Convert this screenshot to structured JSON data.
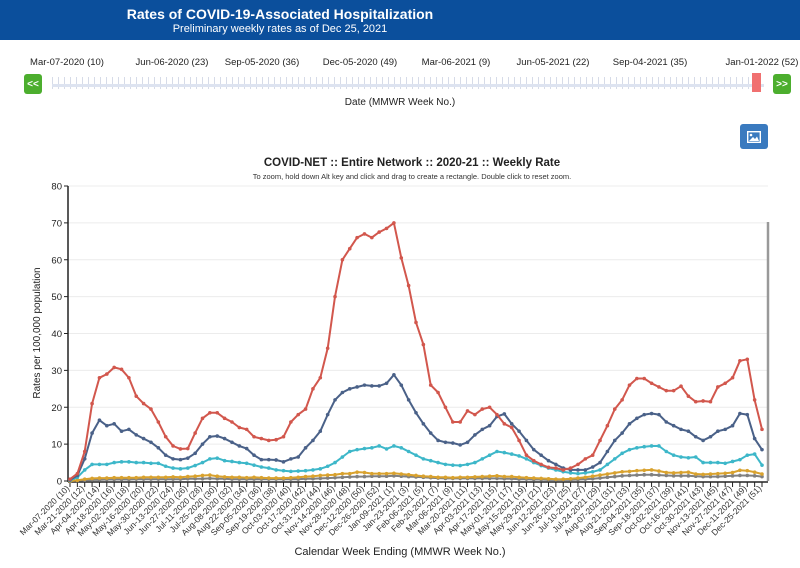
{
  "header": {
    "title": "Rates of COVID-19-Associated Hospitalization",
    "subtitle": "Preliminary weekly rates as of Dec 25, 2021"
  },
  "slider": {
    "labels": [
      "Mar-07-2020 (10)",
      "Jun-06-2020 (23)",
      "Sep-05-2020 (36)",
      "Dec-05-2020 (49)",
      "Mar-06-2021 (9)",
      "Jun-05-2021 (22)",
      "Sep-04-2021 (35)",
      "Jan-01-2022 (52)"
    ],
    "prev_label": "<<",
    "next_label": ">>",
    "axis_label": "Date (MMWR Week No.)"
  },
  "toolbar": {
    "image_icon": "image-icon"
  },
  "chart_data": {
    "type": "line",
    "title": "COVID-NET :: Entire Network :: 2020-21 :: Weekly Rate",
    "subtitle": "To zoom, hold down Alt key and click and drag to create a rectangle. Double click to reset zoom.",
    "xlabel": "Calendar Week Ending (MMWR Week No.)",
    "ylabel": "Rates per 100,000 population",
    "ylim": [
      0,
      80
    ],
    "yticks": [
      0,
      10,
      20,
      30,
      40,
      50,
      60,
      70,
      80
    ],
    "x_start": "Mar-07-2020",
    "x_interval": "weekly",
    "x_tick_labels": [
      "Mar-07-2020 (10)",
      "Mar-21-2020 (12)",
      "Apr-04-2020 (14)",
      "Apr-18-2020 (16)",
      "May-02-2020 (18)",
      "May-16-2020 (20)",
      "May-30-2020 (22)",
      "Jun-13-2020 (24)",
      "Jun-27-2020 (26)",
      "Jul-11-2020 (28)",
      "Jul-25-2020 (30)",
      "Aug-08-2020 (32)",
      "Aug-22-2020 (34)",
      "Sep-05-2020 (36)",
      "Sep-19-2020 (38)",
      "Oct-03-2020 (40)",
      "Oct-17-2020 (42)",
      "Oct-31-2020 (44)",
      "Nov-14-2020 (46)",
      "Nov-28-2020 (48)",
      "Dec-12-2020 (50)",
      "Dec-26-2020 (52)",
      "Jan-09-2021 (1)",
      "Jan-23-2021 (3)",
      "Feb-06-2021 (5)",
      "Feb-20-2021 (7)",
      "Mar-06-2021 (9)",
      "Mar-20-2021 (11)",
      "Apr-03-2021 (13)",
      "Apr-17-2021 (15)",
      "May-01-2021 (17)",
      "May-15-2021 (19)",
      "May-29-2021 (21)",
      "Jun-12-2021 (23)",
      "Jun-26-2021 (25)",
      "Jul-10-2021 (27)",
      "Jul-24-2021 (29)",
      "Aug-07-2021 (31)",
      "Aug-21-2021 (33)",
      "Sep-04-2021 (35)",
      "Sep-18-2021 (37)",
      "Oct-02-2021 (39)",
      "Oct-16-2021 (41)",
      "Oct-30-2021 (43)",
      "Nov-13-2021 (45)",
      "Nov-27-2021 (47)",
      "Dec-11-2021 (49)",
      "Dec-25-2021 (51)"
    ],
    "grid": true,
    "series": [
      {
        "color": "#d2574d",
        "values": [
          0.5,
          2,
          8,
          21,
          28,
          29,
          30.8,
          30.3,
          28,
          23,
          21,
          19.5,
          16,
          12,
          9.5,
          8.7,
          8.8,
          13,
          17,
          18.5,
          18.5,
          17,
          16,
          14.5,
          14,
          12,
          11.5,
          11,
          11.2,
          12,
          16,
          18,
          19.5,
          25,
          28,
          36,
          50,
          60,
          63,
          66,
          67,
          66,
          67.5,
          68.5,
          70,
          60.5,
          53,
          43,
          37,
          26,
          24,
          20,
          16,
          16,
          19,
          18,
          19.5,
          20,
          18,
          15.5,
          14.5,
          11,
          7,
          5.5,
          4.5,
          3.7,
          3.5,
          3,
          3.5,
          4.5,
          6,
          7,
          11,
          15,
          19.5,
          22,
          26,
          27.8,
          27.8,
          26.5,
          25.5,
          24.5,
          24.5,
          25.7,
          23,
          21.5,
          21.7,
          21.5,
          25.5,
          26.5,
          28,
          32.6,
          33,
          22,
          14
        ]
      },
      {
        "color": "#4a6188",
        "values": [
          0.3,
          1.5,
          6,
          13,
          16.5,
          15,
          15.5,
          13.5,
          14,
          12.5,
          11.5,
          10.5,
          9,
          7,
          6,
          5.8,
          6.2,
          7.5,
          10,
          12,
          12.2,
          11.5,
          10.5,
          9.5,
          8.8,
          7,
          5.8,
          5.8,
          5.7,
          5.2,
          6,
          6.5,
          9,
          11,
          13.5,
          18,
          22,
          24,
          25,
          25.5,
          26,
          25.8,
          25.8,
          26.5,
          28.8,
          26,
          22,
          18.5,
          15.5,
          13,
          11,
          10.5,
          10.3,
          9.8,
          10.5,
          12.5,
          14,
          15,
          17.5,
          18.2,
          15.5,
          13.5,
          11,
          8.5,
          7,
          5.5,
          4.5,
          3.5,
          3,
          3,
          3,
          3.8,
          5,
          8,
          11,
          13,
          15.5,
          17,
          18,
          18.3,
          18,
          16,
          15,
          14,
          13.5,
          12,
          11,
          12,
          13.5,
          14,
          15,
          18.3,
          18,
          11.5,
          8.5
        ]
      },
      {
        "color": "#3db7c9",
        "values": [
          0.2,
          1,
          3,
          4.5,
          4.5,
          4.5,
          5,
          5.2,
          5.2,
          5,
          5,
          4.8,
          4.8,
          4,
          3.5,
          3.3,
          3.5,
          4.2,
          5,
          6,
          6.2,
          5.5,
          5.3,
          5,
          4.8,
          4.3,
          3.8,
          3.5,
          3,
          2.8,
          2.6,
          2.7,
          2.8,
          3,
          3.3,
          4,
          5,
          6.5,
          8,
          8.5,
          8.8,
          9,
          9.5,
          8.7,
          9.5,
          9,
          8,
          7,
          6,
          5.5,
          5,
          4.5,
          4.3,
          4.2,
          4.5,
          5,
          6,
          7,
          8,
          7.7,
          7.3,
          6.8,
          6,
          5,
          4.2,
          3.5,
          3,
          2.5,
          2.2,
          2,
          2.2,
          2.5,
          3,
          4.5,
          6,
          7.5,
          8.5,
          9,
          9.3,
          9.5,
          9.5,
          8,
          7,
          6.5,
          6.3,
          6.5,
          5,
          5,
          5,
          4.8,
          5.3,
          5.8,
          7,
          7.3,
          4.3
        ]
      },
      {
        "color": "#d9a22e",
        "values": [
          0,
          0.2,
          0.5,
          0.7,
          0.8,
          0.8,
          0.9,
          0.9,
          0.9,
          0.9,
          1,
          1,
          1,
          1,
          1.1,
          1,
          1.2,
          1.3,
          1.5,
          1.6,
          1.3,
          1.1,
          1,
          1,
          0.9,
          1,
          0.9,
          0.8,
          0.8,
          0.8,
          0.9,
          1,
          1.2,
          1.3,
          1.5,
          1.6,
          1.7,
          2,
          2,
          2.4,
          2.3,
          2,
          2,
          2,
          2.1,
          1.9,
          1.7,
          1.5,
          1.3,
          1.2,
          1,
          1,
          0.9,
          1,
          1,
          1.1,
          1.2,
          1.3,
          1.4,
          1.2,
          1.2,
          1,
          0.9,
          0.8,
          0.7,
          0.6,
          0.5,
          0.5,
          0.6,
          0.8,
          1,
          1.3,
          1.6,
          1.9,
          2.2,
          2.5,
          2.6,
          2.8,
          2.9,
          3,
          2.7,
          2.3,
          2.2,
          2.3,
          2.4,
          1.9,
          1.8,
          1.9,
          2,
          2.1,
          2.3,
          2.9,
          2.8,
          2.4,
          1.9
        ]
      },
      {
        "color": "#808080",
        "values": [
          0,
          0.1,
          0.2,
          0.3,
          0.3,
          0.4,
          0.4,
          0.4,
          0.4,
          0.5,
          0.5,
          0.5,
          0.5,
          0.5,
          0.5,
          0.5,
          0.6,
          0.6,
          0.6,
          0.7,
          0.6,
          0.6,
          0.5,
          0.5,
          0.5,
          0.5,
          0.5,
          0.5,
          0.5,
          0.5,
          0.5,
          0.5,
          0.6,
          0.6,
          0.7,
          0.8,
          0.9,
          1,
          1.1,
          1.2,
          1.2,
          1.3,
          1.3,
          1.3,
          1.4,
          1.3,
          1.2,
          1.1,
          1,
          0.9,
          0.8,
          0.7,
          0.7,
          0.7,
          0.7,
          0.7,
          0.7,
          0.7,
          0.7,
          0.6,
          0.6,
          0.5,
          0.5,
          0.4,
          0.4,
          0.3,
          0.3,
          0.3,
          0.3,
          0.4,
          0.5,
          0.6,
          0.8,
          1,
          1.2,
          1.4,
          1.5,
          1.6,
          1.7,
          1.7,
          1.6,
          1.5,
          1.4,
          1.4,
          1.4,
          1.3,
          1.2,
          1.2,
          1.2,
          1.3,
          1.4,
          1.5,
          1.5,
          1.4,
          1.2
        ]
      }
    ]
  }
}
